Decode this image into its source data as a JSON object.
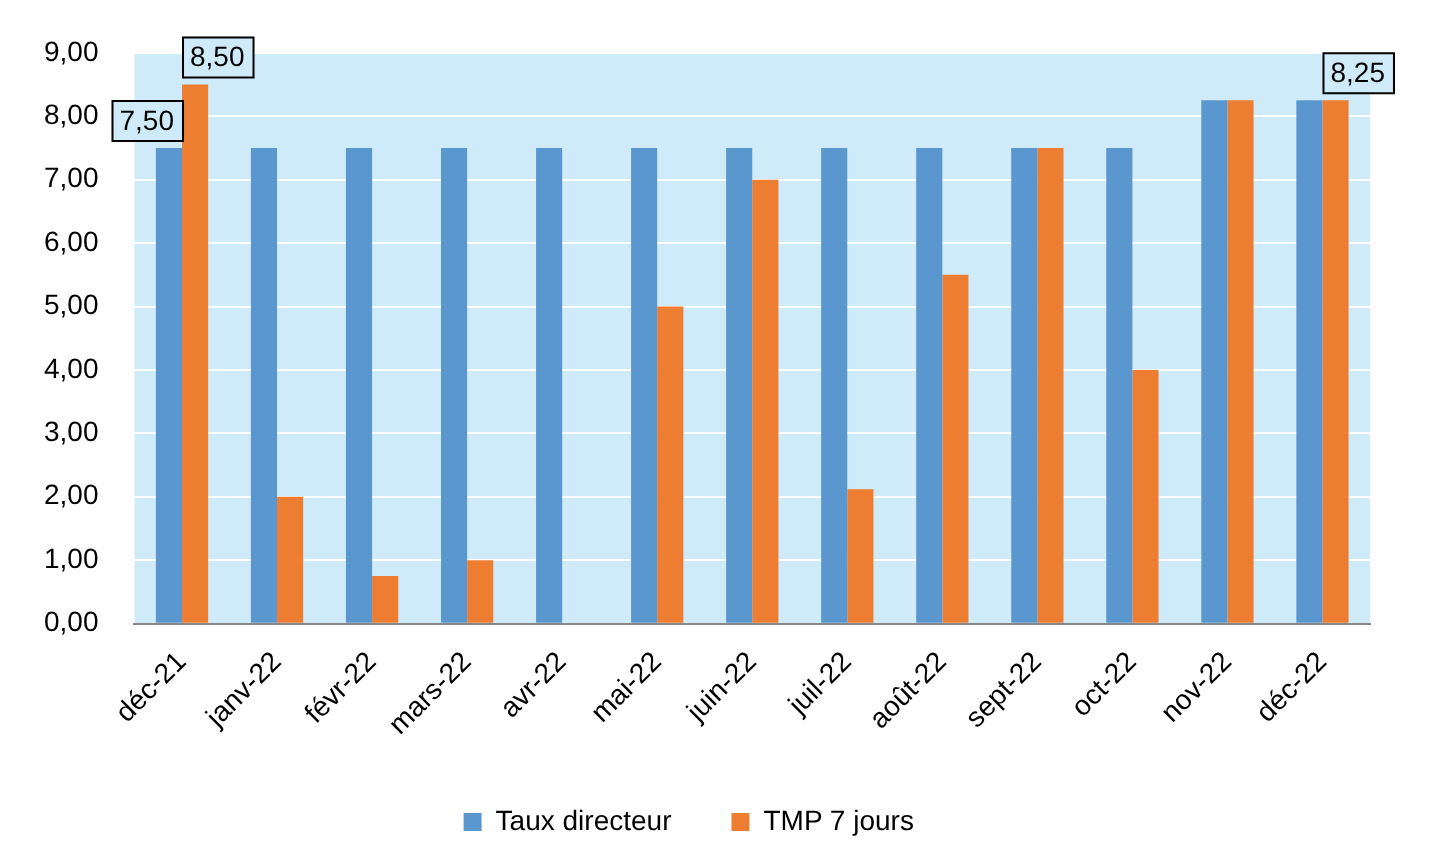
{
  "chart_data": {
    "type": "bar",
    "categories": [
      "déc-21",
      "janv-22",
      "févr-22",
      "mars-22",
      "avr-22",
      "mai-22",
      "juin-22",
      "juil-22",
      "août-22",
      "sept-22",
      "oct-22",
      "nov-22",
      "déc-22"
    ],
    "series": [
      {
        "name": "Taux directeur",
        "color": "#5b97cf",
        "values": [
          7.5,
          7.5,
          7.5,
          7.5,
          7.5,
          7.5,
          7.5,
          7.5,
          7.5,
          7.5,
          7.5,
          8.25,
          8.25
        ],
        "value_labels": [
          "7,50",
          null,
          null,
          null,
          null,
          null,
          null,
          null,
          null,
          null,
          null,
          null,
          null
        ]
      },
      {
        "name": "TMP 7 jours",
        "color": "#ed7d31",
        "values": [
          8.5,
          2.0,
          0.75,
          1.0,
          0,
          5.0,
          7.0,
          2.12,
          5.5,
          7.5,
          4.0,
          8.25,
          8.25
        ],
        "value_labels": [
          "8,50",
          null,
          null,
          null,
          null,
          null,
          null,
          null,
          null,
          null,
          null,
          null,
          "8,25"
        ]
      }
    ],
    "ylim": [
      0,
      9
    ],
    "yticks": [
      {
        "value": 0,
        "label": "0,00"
      },
      {
        "value": 1,
        "label": "1,00"
      },
      {
        "value": 2,
        "label": "2,00"
      },
      {
        "value": 3,
        "label": "3,00"
      },
      {
        "value": 4,
        "label": "4,00"
      },
      {
        "value": 5,
        "label": "5,00"
      },
      {
        "value": 6,
        "label": "6,00"
      },
      {
        "value": 7,
        "label": "7,00"
      },
      {
        "value": 8,
        "label": "8,00"
      },
      {
        "value": 9,
        "label": "9,00"
      }
    ],
    "grid": "y",
    "legend": "bottom"
  }
}
